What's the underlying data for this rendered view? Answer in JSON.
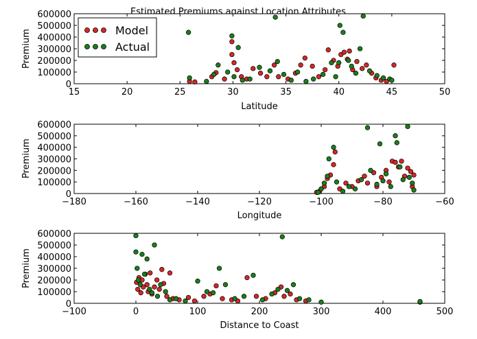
{
  "chart_data": [
    {
      "type": "scatter",
      "title": "Estimated Premiums against Location Attributes",
      "xlabel": "Latitude",
      "ylabel": "Premium",
      "xlim": [
        15,
        50
      ],
      "ylim": [
        0,
        600000
      ],
      "xticks": [
        "15",
        "20",
        "25",
        "30",
        "35",
        "40",
        "45",
        "50"
      ],
      "yticks": [
        "0",
        "100000",
        "200000",
        "300000",
        "400000",
        "500000",
        "600000"
      ],
      "legend": {
        "position": "top-left",
        "entries": [
          "Model",
          "Actual"
        ]
      },
      "series": [
        {
          "name": "Model",
          "color": "#d62728",
          "points": [
            [
              25.9,
              20000
            ],
            [
              26.4,
              15000
            ],
            [
              28.0,
              60000
            ],
            [
              28.4,
              95000
            ],
            [
              29.2,
              40000
            ],
            [
              29.9,
              360000
            ],
            [
              29.9,
              250000
            ],
            [
              30.1,
              180000
            ],
            [
              30.4,
              120000
            ],
            [
              30.8,
              60000
            ],
            [
              31.3,
              40000
            ],
            [
              31.9,
              130000
            ],
            [
              32.6,
              90000
            ],
            [
              33.2,
              60000
            ],
            [
              33.9,
              160000
            ],
            [
              34.3,
              60000
            ],
            [
              35.2,
              40000
            ],
            [
              35.9,
              90000
            ],
            [
              36.4,
              160000
            ],
            [
              36.8,
              220000
            ],
            [
              37.5,
              150000
            ],
            [
              38.1,
              60000
            ],
            [
              38.7,
              120000
            ],
            [
              39.0,
              290000
            ],
            [
              39.5,
              200000
            ],
            [
              39.9,
              150000
            ],
            [
              40.2,
              250000
            ],
            [
              40.5,
              270000
            ],
            [
              40.8,
              210000
            ],
            [
              41.0,
              280000
            ],
            [
              41.3,
              120000
            ],
            [
              41.7,
              190000
            ],
            [
              42.2,
              130000
            ],
            [
              42.6,
              160000
            ],
            [
              43.1,
              90000
            ],
            [
              43.5,
              50000
            ],
            [
              44.0,
              30000
            ],
            [
              44.5,
              20000
            ],
            [
              45.2,
              160000
            ]
          ]
        },
        {
          "name": "Actual",
          "color": "#1a7f1a",
          "points": [
            [
              25.8,
              440000
            ],
            [
              25.9,
              50000
            ],
            [
              27.5,
              20000
            ],
            [
              28.2,
              80000
            ],
            [
              28.6,
              160000
            ],
            [
              29.5,
              100000
            ],
            [
              29.9,
              410000
            ],
            [
              30.1,
              60000
            ],
            [
              30.5,
              310000
            ],
            [
              30.9,
              30000
            ],
            [
              31.6,
              40000
            ],
            [
              32.5,
              140000
            ],
            [
              33.5,
              110000
            ],
            [
              34.0,
              570000
            ],
            [
              34.2,
              190000
            ],
            [
              34.8,
              80000
            ],
            [
              35.5,
              30000
            ],
            [
              36.1,
              100000
            ],
            [
              36.9,
              20000
            ],
            [
              37.6,
              40000
            ],
            [
              38.5,
              80000
            ],
            [
              39.3,
              180000
            ],
            [
              39.7,
              60000
            ],
            [
              40.0,
              180000
            ],
            [
              40.1,
              500000
            ],
            [
              40.4,
              440000
            ],
            [
              40.9,
              200000
            ],
            [
              41.2,
              150000
            ],
            [
              41.6,
              90000
            ],
            [
              42.0,
              300000
            ],
            [
              42.3,
              580000
            ],
            [
              42.9,
              110000
            ],
            [
              43.6,
              70000
            ],
            [
              44.2,
              50000
            ],
            [
              44.8,
              40000
            ],
            [
              45.0,
              30000
            ]
          ]
        }
      ]
    },
    {
      "type": "scatter",
      "title": "",
      "xlabel": "Longitude",
      "ylabel": "Premium",
      "xlim": [
        -180,
        -60
      ],
      "ylim": [
        0,
        600000
      ],
      "xticks": [
        "−180",
        "−160",
        "−140",
        "−120",
        "−100",
        "−80",
        "−60"
      ],
      "yticks": [
        "0",
        "100000",
        "200000",
        "300000",
        "400000",
        "500000",
        "600000"
      ],
      "series": [
        {
          "name": "Model",
          "color": "#d62728",
          "points": [
            [
              -101.5,
              10000
            ],
            [
              -100.5,
              20000
            ],
            [
              -99.0,
              60000
            ],
            [
              -98.0,
              130000
            ],
            [
              -97.0,
              160000
            ],
            [
              -96.0,
              250000
            ],
            [
              -95.5,
              360000
            ],
            [
              -94.0,
              40000
            ],
            [
              -92.0,
              90000
            ],
            [
              -90.0,
              60000
            ],
            [
              -88.0,
              110000
            ],
            [
              -86.0,
              150000
            ],
            [
              -85.0,
              90000
            ],
            [
              -83.0,
              180000
            ],
            [
              -82.0,
              60000
            ],
            [
              -80.5,
              140000
            ],
            [
              -79.0,
              200000
            ],
            [
              -78.0,
              100000
            ],
            [
              -77.0,
              280000
            ],
            [
              -76.0,
              270000
            ],
            [
              -75.0,
              230000
            ],
            [
              -74.0,
              280000
            ],
            [
              -73.0,
              150000
            ],
            [
              -72.0,
              220000
            ],
            [
              -71.0,
              190000
            ],
            [
              -70.5,
              60000
            ],
            [
              -70.0,
              160000
            ]
          ]
        },
        {
          "name": "Actual",
          "color": "#1a7f1a",
          "points": [
            [
              -101.0,
              10000
            ],
            [
              -100.0,
              40000
            ],
            [
              -99.0,
              90000
            ],
            [
              -98.0,
              150000
            ],
            [
              -97.5,
              300000
            ],
            [
              -96.0,
              400000
            ],
            [
              -95.0,
              100000
            ],
            [
              -93.0,
              20000
            ],
            [
              -91.0,
              60000
            ],
            [
              -89.0,
              40000
            ],
            [
              -87.0,
              120000
            ],
            [
              -85.0,
              570000
            ],
            [
              -84.0,
              200000
            ],
            [
              -82.0,
              80000
            ],
            [
              -81.0,
              430000
            ],
            [
              -80.0,
              110000
            ],
            [
              -79.0,
              170000
            ],
            [
              -77.5,
              60000
            ],
            [
              -76.0,
              500000
            ],
            [
              -75.5,
              440000
            ],
            [
              -74.5,
              230000
            ],
            [
              -73.5,
              120000
            ],
            [
              -72.0,
              580000
            ],
            [
              -71.5,
              140000
            ],
            [
              -70.5,
              90000
            ],
            [
              -70.0,
              30000
            ]
          ]
        }
      ]
    },
    {
      "type": "scatter",
      "title": "",
      "xlabel": "Distance to Coast",
      "ylabel": "Premium",
      "xlim": [
        -100,
        500
      ],
      "ylim": [
        0,
        600000
      ],
      "xticks": [
        "−100",
        "0",
        "100",
        "200",
        "300",
        "400",
        "500"
      ],
      "yticks": [
        "0",
        "100000",
        "200000",
        "300000",
        "400000",
        "500000",
        "600000"
      ],
      "series": [
        {
          "name": "Model",
          "color": "#d62728",
          "points": [
            [
              1,
              180000
            ],
            [
              3,
              120000
            ],
            [
              5,
              220000
            ],
            [
              8,
              90000
            ],
            [
              10,
              200000
            ],
            [
              12,
              140000
            ],
            [
              15,
              250000
            ],
            [
              18,
              160000
            ],
            [
              20,
              100000
            ],
            [
              23,
              260000
            ],
            [
              26,
              80000
            ],
            [
              30,
              140000
            ],
            [
              34,
              200000
            ],
            [
              38,
              120000
            ],
            [
              42,
              290000
            ],
            [
              45,
              170000
            ],
            [
              50,
              60000
            ],
            [
              55,
              260000
            ],
            [
              60,
              40000
            ],
            [
              70,
              30000
            ],
            [
              85,
              50000
            ],
            [
              95,
              20000
            ],
            [
              110,
              60000
            ],
            [
              120,
              80000
            ],
            [
              130,
              150000
            ],
            [
              140,
              40000
            ],
            [
              155,
              30000
            ],
            [
              165,
              20000
            ],
            [
              180,
              220000
            ],
            [
              195,
              60000
            ],
            [
              210,
              40000
            ],
            [
              225,
              90000
            ],
            [
              235,
              140000
            ],
            [
              240,
              60000
            ],
            [
              250,
              80000
            ],
            [
              260,
              30000
            ],
            [
              275,
              20000
            ],
            [
              460,
              10000
            ]
          ]
        },
        {
          "name": "Actual",
          "color": "#1a7f1a",
          "points": [
            [
              0,
              580000
            ],
            [
              0,
              440000
            ],
            [
              2,
              300000
            ],
            [
              4,
              200000
            ],
            [
              7,
              160000
            ],
            [
              10,
              420000
            ],
            [
              14,
              250000
            ],
            [
              18,
              380000
            ],
            [
              22,
              120000
            ],
            [
              26,
              90000
            ],
            [
              30,
              500000
            ],
            [
              35,
              60000
            ],
            [
              40,
              160000
            ],
            [
              48,
              100000
            ],
            [
              55,
              30000
            ],
            [
              65,
              40000
            ],
            [
              80,
              20000
            ],
            [
              100,
              190000
            ],
            [
              115,
              100000
            ],
            [
              125,
              90000
            ],
            [
              135,
              300000
            ],
            [
              145,
              160000
            ],
            [
              160,
              40000
            ],
            [
              175,
              60000
            ],
            [
              190,
              240000
            ],
            [
              205,
              30000
            ],
            [
              220,
              80000
            ],
            [
              230,
              120000
            ],
            [
              237,
              570000
            ],
            [
              245,
              110000
            ],
            [
              255,
              160000
            ],
            [
              265,
              40000
            ],
            [
              280,
              30000
            ],
            [
              300,
              10000
            ],
            [
              460,
              15000
            ]
          ]
        }
      ]
    }
  ]
}
